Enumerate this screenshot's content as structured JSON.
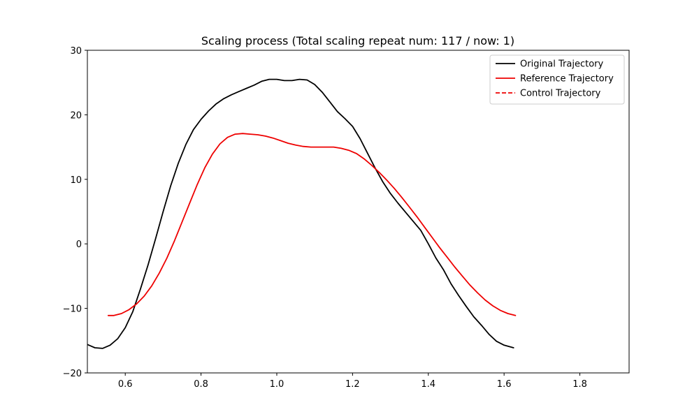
{
  "chart_data": {
    "type": "line",
    "title": "Scaling process (Total scaling repeat num: 117 / now: 1)",
    "xlabel": "",
    "ylabel": "",
    "xlim": [
      0.5,
      1.93
    ],
    "ylim": [
      -20,
      30
    ],
    "xticks": [
      0.6,
      0.8,
      1.0,
      1.2,
      1.4,
      1.6,
      1.8
    ],
    "xtick_labels": [
      "0.6",
      "0.8",
      "1.0",
      "1.2",
      "1.4",
      "1.6",
      "1.8"
    ],
    "yticks": [
      -20,
      -10,
      0,
      10,
      20,
      30
    ],
    "ytick_labels": [
      "−20",
      "−10",
      "0",
      "10",
      "20",
      "30"
    ],
    "grid": false,
    "legend_position": "top-right",
    "series": [
      {
        "name": "Original Trajectory",
        "color": "#000000",
        "style": "solid",
        "x": [
          0.5,
          0.52,
          0.54,
          0.56,
          0.58,
          0.6,
          0.62,
          0.64,
          0.66,
          0.68,
          0.7,
          0.72,
          0.74,
          0.76,
          0.78,
          0.8,
          0.82,
          0.84,
          0.86,
          0.88,
          0.9,
          0.92,
          0.94,
          0.96,
          0.98,
          1.0,
          1.02,
          1.04,
          1.06,
          1.08,
          1.1,
          1.12,
          1.14,
          1.16,
          1.18,
          1.2,
          1.22,
          1.24,
          1.26,
          1.28,
          1.3,
          1.32,
          1.34,
          1.36,
          1.38,
          1.4,
          1.42,
          1.44,
          1.46,
          1.48,
          1.5,
          1.52,
          1.54,
          1.56,
          1.58,
          1.6,
          1.625
        ],
        "y": [
          -15.6,
          -16.1,
          -16.2,
          -15.7,
          -14.7,
          -13.0,
          -10.5,
          -7.0,
          -3.3,
          0.8,
          5.0,
          9.0,
          12.5,
          15.4,
          17.7,
          19.3,
          20.6,
          21.7,
          22.5,
          23.1,
          23.6,
          24.1,
          24.6,
          25.2,
          25.5,
          25.5,
          25.3,
          25.3,
          25.5,
          25.4,
          24.7,
          23.5,
          22.0,
          20.5,
          19.4,
          18.2,
          16.3,
          14.0,
          11.7,
          9.6,
          7.8,
          6.3,
          4.9,
          3.5,
          2.1,
          0.0,
          -2.2,
          -4.0,
          -6.2,
          -8.0,
          -9.7,
          -11.3,
          -12.6,
          -14.0,
          -15.1,
          -15.7,
          -16.1
        ]
      },
      {
        "name": "Reference Trajectory",
        "color": "#ee0000",
        "style": "solid",
        "x": [
          0.555,
          0.57,
          0.59,
          0.61,
          0.63,
          0.65,
          0.67,
          0.69,
          0.71,
          0.73,
          0.75,
          0.77,
          0.79,
          0.81,
          0.83,
          0.85,
          0.87,
          0.89,
          0.91,
          0.93,
          0.95,
          0.97,
          0.99,
          1.01,
          1.03,
          1.05,
          1.07,
          1.09,
          1.11,
          1.13,
          1.15,
          1.17,
          1.19,
          1.21,
          1.23,
          1.25,
          1.27,
          1.29,
          1.31,
          1.33,
          1.35,
          1.37,
          1.39,
          1.41,
          1.43,
          1.45,
          1.47,
          1.49,
          1.51,
          1.53,
          1.55,
          1.57,
          1.59,
          1.61,
          1.63
        ],
        "y": [
          -11.1,
          -11.1,
          -10.8,
          -10.2,
          -9.3,
          -8.1,
          -6.5,
          -4.5,
          -2.2,
          0.5,
          3.4,
          6.3,
          9.2,
          11.8,
          13.9,
          15.5,
          16.5,
          17.0,
          17.1,
          17.0,
          16.9,
          16.7,
          16.4,
          16.0,
          15.6,
          15.3,
          15.1,
          15.0,
          15.0,
          15.0,
          15.0,
          14.8,
          14.5,
          14.0,
          13.2,
          12.2,
          11.1,
          9.9,
          8.6,
          7.2,
          5.7,
          4.2,
          2.6,
          1.0,
          -0.6,
          -2.1,
          -3.6,
          -5.0,
          -6.4,
          -7.6,
          -8.7,
          -9.6,
          -10.3,
          -10.8,
          -11.1
        ]
      },
      {
        "name": "Control Trajectory",
        "color": "#ee0000",
        "style": "dashed",
        "x": [],
        "y": []
      }
    ]
  }
}
